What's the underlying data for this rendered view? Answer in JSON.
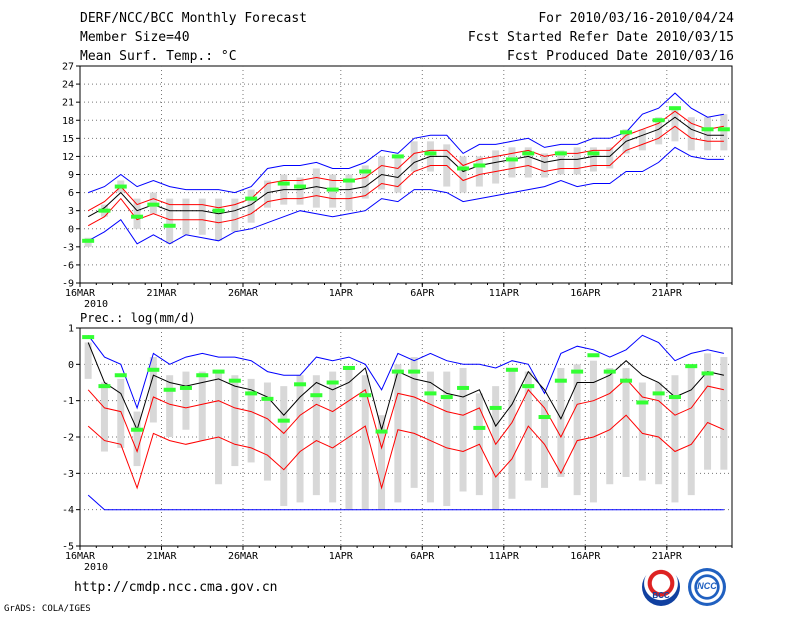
{
  "header": {
    "title": "DERF/NCC/BCC Monthly Forecast",
    "member_size": "Member Size=40",
    "variable": "Mean Surf. Temp.: °C",
    "period": "For 2010/03/16-2010/04/24",
    "fcst_started": "Fcst Started Refer Date 2010/03/15",
    "fcst_produced": "Fcst Produced Date 2010/03/16"
  },
  "footer": {
    "url": "http://cmdp.ncc.cma.gov.cn",
    "grads": "GrADS: COLA/IGES",
    "logo_left_text": "BCC",
    "logo_right_text": "NCC"
  },
  "colors": {
    "envelope": "#0000ff",
    "spread": "#ff0000",
    "mean": "#000000",
    "observed": "#33ff33",
    "box": "#d8d8d8"
  },
  "chart_data": [
    {
      "type": "line",
      "title": "Mean Surf. Temp.: °C",
      "ylim": [
        -9,
        27
      ],
      "yticks": [
        -9,
        -6,
        -3,
        0,
        3,
        6,
        9,
        12,
        15,
        18,
        21,
        24,
        27
      ],
      "x_tick_days": [
        0,
        5,
        10,
        16,
        21,
        26,
        31,
        36
      ],
      "x_tick_labels": [
        "16MAR",
        "21MAR",
        "26MAR",
        "1APR",
        "6APR",
        "11APR",
        "16APR",
        "21APR"
      ],
      "year_label": "2010",
      "series": [
        {
          "name": "max",
          "values": [
            6,
            7,
            9,
            7,
            8,
            7,
            6.5,
            6.5,
            6.5,
            6,
            7,
            10,
            10.5,
            10.5,
            11,
            10,
            10,
            11,
            13,
            12.5,
            15,
            15.5,
            15.5,
            12.5,
            14,
            14,
            14.5,
            15,
            13.5,
            14,
            14,
            15,
            15,
            16,
            19,
            20,
            22.5,
            20,
            18.5,
            19
          ]
        },
        {
          "name": "upper",
          "values": [
            3,
            4.5,
            7,
            4,
            5,
            4,
            4,
            4,
            3.5,
            4,
            5,
            7.5,
            8,
            8,
            8.5,
            8,
            8,
            8.5,
            10.5,
            10,
            12.5,
            13,
            13,
            10.5,
            11.5,
            12,
            12.5,
            13,
            12,
            12.5,
            12.5,
            13,
            13,
            15.5,
            16.5,
            17.5,
            19.5,
            17.5,
            16.5,
            17
          ]
        },
        {
          "name": "mean",
          "values": [
            2,
            3.5,
            6,
            3,
            4,
            3,
            3,
            3,
            2.5,
            3,
            4,
            6,
            6.5,
            6.5,
            7,
            6.5,
            6.5,
            7,
            9,
            8.5,
            11,
            12,
            12,
            9.5,
            10.5,
            11,
            11.5,
            12,
            11,
            11.5,
            11.5,
            12,
            12,
            14.5,
            15.5,
            16.5,
            18.5,
            16.5,
            15.5,
            15.5
          ]
        },
        {
          "name": "lower",
          "values": [
            0.5,
            2,
            5,
            1.5,
            2.5,
            1.5,
            1.5,
            1.5,
            1,
            1.5,
            2.5,
            4.5,
            5,
            5,
            5.5,
            5,
            5,
            5.5,
            7.5,
            7,
            9.5,
            10.5,
            10.5,
            8,
            9,
            9.5,
            10,
            10.5,
            9.5,
            10,
            10,
            10.5,
            10.5,
            13,
            14,
            15,
            17,
            15,
            14.5,
            14.5
          ]
        },
        {
          "name": "min",
          "values": [
            -2,
            -0.5,
            1.5,
            -2.5,
            -1,
            -2.5,
            -1,
            -1.5,
            -2,
            -0.5,
            0,
            1,
            2,
            3,
            2.5,
            2,
            2.5,
            3,
            5,
            4.5,
            6.5,
            6.5,
            6,
            4.5,
            5,
            5.5,
            6,
            6.5,
            7,
            8,
            7,
            7.5,
            7.5,
            9.5,
            9.5,
            11,
            13.5,
            12,
            11.5,
            11.5
          ]
        },
        {
          "name": "observed",
          "values": [
            -2,
            3,
            7,
            2,
            4,
            0.5,
            null,
            null,
            3,
            null,
            5,
            null,
            7.5,
            7,
            null,
            6.5,
            8,
            9.5,
            null,
            12,
            null,
            12.5,
            null,
            10,
            10.5,
            null,
            11.5,
            12.5,
            null,
            12.5,
            null,
            12.5,
            null,
            16,
            null,
            18,
            20,
            null,
            16.5,
            16.5
          ]
        }
      ],
      "boxes": [
        [
          -3,
          -1.5
        ],
        [
          2,
          4
        ],
        [
          6,
          8
        ],
        [
          0,
          5
        ],
        [
          2.5,
          6
        ],
        [
          -2.5,
          5
        ],
        [
          -1,
          5
        ],
        [
          -1,
          5
        ],
        [
          -2,
          5
        ],
        [
          -0.5,
          5
        ],
        [
          1,
          6.5
        ],
        [
          3.5,
          8
        ],
        [
          4,
          9
        ],
        [
          4,
          8.5
        ],
        [
          3.5,
          10
        ],
        [
          3.5,
          9
        ],
        [
          3,
          9
        ],
        [
          5,
          10.5
        ],
        [
          6.5,
          12
        ],
        [
          6,
          12
        ],
        [
          9.5,
          14.5
        ],
        [
          9.5,
          14.5
        ],
        [
          7,
          14
        ],
        [
          6,
          12
        ],
        [
          7,
          12
        ],
        [
          7.5,
          13
        ],
        [
          8.5,
          13.5
        ],
        [
          8.5,
          13.5
        ],
        [
          8.5,
          12.5
        ],
        [
          9,
          13
        ],
        [
          9,
          13.5
        ],
        [
          9.5,
          13.5
        ],
        [
          10,
          13.5
        ],
        [
          12.5,
          16.5
        ],
        [
          13,
          16.5
        ],
        [
          14,
          18.5
        ],
        [
          14.5,
          20
        ],
        [
          13,
          18.5
        ],
        [
          13,
          18.5
        ],
        [
          13,
          19
        ]
      ]
    },
    {
      "type": "line",
      "title": "Prec.: log(mm/d)",
      "ylim": [
        -5,
        1
      ],
      "yticks": [
        -5,
        -4,
        -3,
        -2,
        -1,
        0,
        1
      ],
      "x_tick_days": [
        0,
        5,
        10,
        16,
        21,
        26,
        31,
        36
      ],
      "x_tick_labels": [
        "16MAR",
        "21MAR",
        "26MAR",
        "1APR",
        "6APR",
        "11APR",
        "16APR",
        "21APR"
      ],
      "year_label": "2010",
      "series": [
        {
          "name": "max",
          "values": [
            0.8,
            0.2,
            0,
            -1.2,
            0.3,
            0,
            0.2,
            0.3,
            0.2,
            0.2,
            0.1,
            -0.2,
            -0.3,
            -0.3,
            0.2,
            0.1,
            0.2,
            0,
            -0.7,
            0.3,
            0.1,
            0.3,
            0.1,
            0,
            0,
            -0.1,
            0.1,
            0,
            -0.8,
            0.3,
            0.5,
            0.4,
            0.2,
            0.4,
            0.8,
            0.6,
            0.1,
            0.3,
            0.4,
            0.3
          ]
        },
        {
          "name": "mean",
          "values": [
            0.6,
            -0.5,
            -0.8,
            -1.8,
            -0.3,
            -0.5,
            -0.6,
            -0.5,
            -0.4,
            -0.6,
            -0.7,
            -0.9,
            -1.4,
            -0.9,
            -0.5,
            -0.7,
            -0.5,
            -0.1,
            -1.8,
            -0.2,
            -0.4,
            -0.5,
            -0.8,
            -0.9,
            -0.7,
            -1.7,
            -1.1,
            -0.2,
            -0.7,
            -1.5,
            -0.5,
            -0.5,
            -0.3,
            0.1,
            -0.3,
            -0.5,
            -0.9,
            -0.7,
            -0.2,
            -0.3
          ]
        },
        {
          "name": "upper",
          "values": [
            -0.7,
            -1.2,
            -1.3,
            -2.4,
            -0.9,
            -1.1,
            -1.2,
            -1.1,
            -1,
            -1.2,
            -1.3,
            -1.5,
            -1.9,
            -1.4,
            -1.1,
            -1.3,
            -1,
            -0.7,
            -2.3,
            -0.8,
            -0.9,
            -1.1,
            -1.3,
            -1.4,
            -1.2,
            -2.2,
            -1.6,
            -0.7,
            -1.2,
            -2,
            -1.1,
            -1,
            -0.8,
            -0.4,
            -0.9,
            -1,
            -1.4,
            -1.2,
            -0.6,
            -0.7
          ]
        },
        {
          "name": "lower",
          "values": [
            -1.7,
            -2.1,
            -2.2,
            -3.4,
            -1.9,
            -2.1,
            -2.2,
            -2.1,
            -2,
            -2.2,
            -2.3,
            -2.5,
            -2.9,
            -2.4,
            -2.1,
            -2.3,
            -2,
            -1.7,
            -3.4,
            -1.8,
            -1.9,
            -2.1,
            -2.3,
            -2.4,
            -2.2,
            -3.1,
            -2.6,
            -1.7,
            -2.2,
            -3,
            -2.1,
            -2,
            -1.8,
            -1.4,
            -1.9,
            -2,
            -2.4,
            -2.2,
            -1.6,
            -1.8
          ]
        },
        {
          "name": "min",
          "values": [
            -3.6,
            -4,
            -4,
            -4,
            -4,
            -4,
            -4,
            -4,
            -4,
            -4,
            -4,
            -4,
            -4,
            -4,
            -4,
            -4,
            -4,
            -4,
            -4,
            -4,
            -4,
            -4,
            -4,
            -4,
            -4,
            -4,
            -4,
            -4,
            -4,
            -4,
            -4,
            -4,
            -4,
            -4,
            -4,
            -4,
            -4,
            -4,
            -4,
            -4
          ]
        },
        {
          "name": "observed",
          "values": [
            0.75,
            -0.6,
            -0.3,
            -1.8,
            -0.15,
            -0.7,
            -0.65,
            -0.3,
            -0.2,
            -0.45,
            -0.8,
            -0.95,
            -1.55,
            -0.55,
            -0.85,
            -0.5,
            -0.1,
            -0.85,
            -1.85,
            -0.2,
            -0.2,
            -0.8,
            -0.9,
            -0.65,
            -1.75,
            -1.2,
            -0.15,
            -0.6,
            -1.45,
            -0.45,
            -0.2,
            0.25,
            -0.2,
            -0.45,
            -1.05,
            -0.8,
            -0.9,
            -0.05,
            -0.25,
            null
          ]
        }
      ],
      "boxes": [
        [
          -0.4,
          0.6
        ],
        [
          -2.4,
          -0.5
        ],
        [
          -2.3,
          -0.4
        ],
        [
          -2.8,
          -1.3
        ],
        [
          -1.6,
          0.2
        ],
        [
          -2,
          -0.3
        ],
        [
          -1.8,
          -0.2
        ],
        [
          -2.1,
          -0.2
        ],
        [
          -3.3,
          -0.2
        ],
        [
          -2.8,
          -0.3
        ],
        [
          -2.7,
          -0.4
        ],
        [
          -3.2,
          -0.5
        ],
        [
          -3.9,
          -0.6
        ],
        [
          -3.8,
          -0.3
        ],
        [
          -3.6,
          -0.3
        ],
        [
          -3.8,
          -0.2
        ],
        [
          -4,
          -0.1
        ],
        [
          -4,
          -0.3
        ],
        [
          -4,
          -1.4
        ],
        [
          -3.8,
          0
        ],
        [
          -3.4,
          0.2
        ],
        [
          -3.8,
          -0.2
        ],
        [
          -3.9,
          -0.2
        ],
        [
          -3.5,
          -0.1
        ],
        [
          -3.6,
          -0.8
        ],
        [
          -4,
          -0.6
        ],
        [
          -3.7,
          -0.1
        ],
        [
          -3.2,
          -0.2
        ],
        [
          -3.4,
          -1
        ],
        [
          -3.1,
          -0.1
        ],
        [
          -3.6,
          0
        ],
        [
          -3.8,
          0.1
        ],
        [
          -3.3,
          -0.1
        ],
        [
          -3.1,
          -0.1
        ],
        [
          -3.2,
          -0.5
        ],
        [
          -3.3,
          -0.5
        ],
        [
          -3.8,
          -0.3
        ],
        [
          -3.6,
          -0.1
        ],
        [
          -2.9,
          0.3
        ],
        [
          -2.9,
          0.2
        ]
      ]
    }
  ]
}
